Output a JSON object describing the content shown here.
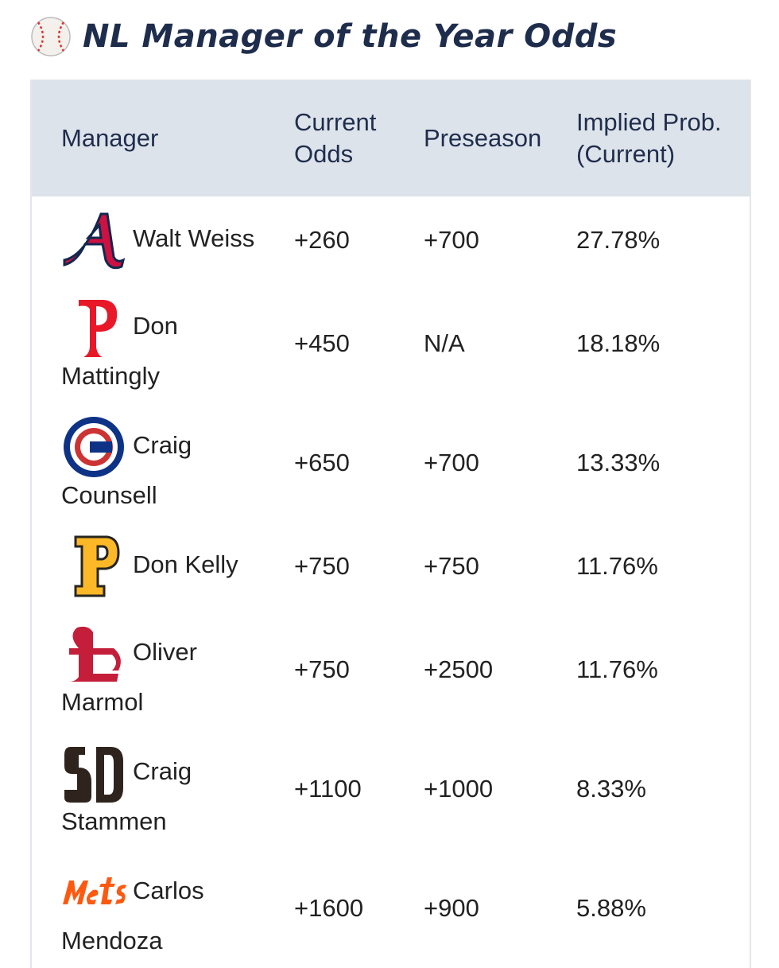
{
  "header": {
    "title": "NL Manager of the Year Odds"
  },
  "table": {
    "columns": [
      "Manager",
      "Current Odds",
      "Preseason",
      "Implied Prob. (Current)"
    ],
    "rows": [
      [
        "Walt Weiss",
        "+260",
        "+700",
        "27.78%"
      ],
      [
        "Don Mattingly",
        "+450",
        "N/A",
        "18.18%"
      ],
      [
        "Craig Counsell",
        "+650",
        "+700",
        "13.33%"
      ],
      [
        "Don Kelly",
        "+750",
        "+750",
        "11.76%"
      ],
      [
        "Oliver Marmol",
        "+750",
        "+2500",
        "11.76%"
      ],
      [
        "Craig Stammen",
        "+1100",
        "+1000",
        "8.33%"
      ],
      [
        "Carlos Mendoza",
        "+1600",
        "+900",
        "5.88%"
      ]
    ]
  }
}
